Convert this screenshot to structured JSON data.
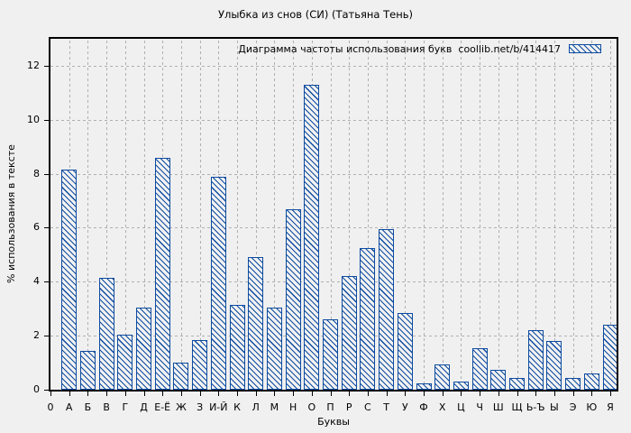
{
  "chart_data": {
    "type": "bar",
    "title": "Улыбка из снов (СИ) (Татьяна Тень)",
    "legend_label": "Диаграмма частоты использования букв  coollib.net/b/414417",
    "legend_position": "top-right",
    "xlabel": "Буквы",
    "ylabel": "% использования в тексте",
    "x_origin_label": "0",
    "ylim": [
      0,
      13
    ],
    "yticks": [
      0,
      2,
      4,
      6,
      8,
      10,
      12
    ],
    "grid": true,
    "categories": [
      "А",
      "Б",
      "В",
      "Г",
      "Д",
      "Е-Ё",
      "Ж",
      "З",
      "И-Й",
      "К",
      "Л",
      "М",
      "Н",
      "О",
      "П",
      "Р",
      "С",
      "Т",
      "У",
      "Ф",
      "Х",
      "Ц",
      "Ч",
      "Ш",
      "Щ",
      "Ь-Ъ",
      "Ы",
      "Э",
      "Ю",
      "Я"
    ],
    "values": [
      8.15,
      1.45,
      4.15,
      2.05,
      3.05,
      8.6,
      1.0,
      1.85,
      7.9,
      3.15,
      4.9,
      3.05,
      6.7,
      11.3,
      2.6,
      4.2,
      5.25,
      5.95,
      2.85,
      0.25,
      0.95,
      0.3,
      1.55,
      0.75,
      0.45,
      2.2,
      1.8,
      0.45,
      0.6,
      2.4
    ],
    "colors": {
      "bar": "#0d4ba0",
      "background": "#f0f0f0",
      "grid": "#b0b0b0",
      "axis": "#000000",
      "text": "#000000"
    }
  }
}
